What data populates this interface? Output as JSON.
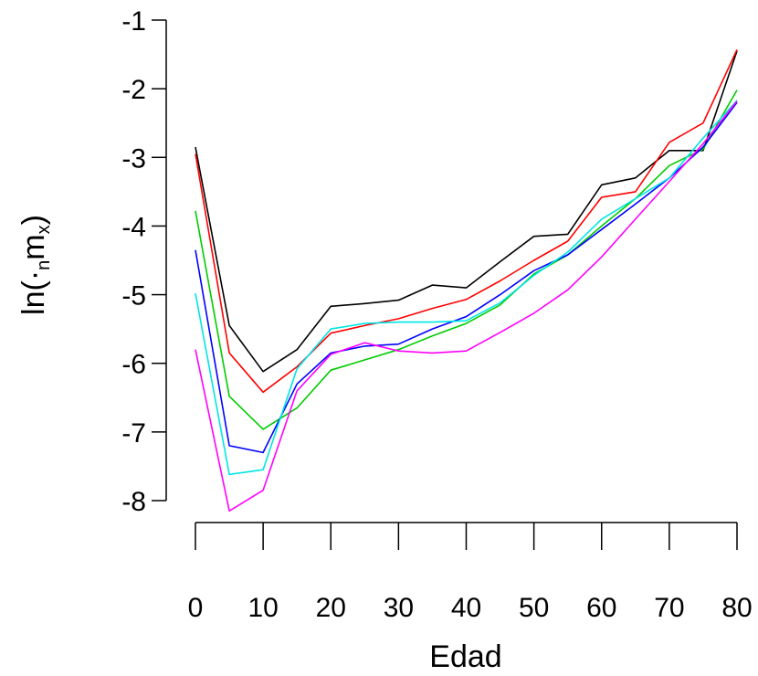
{
  "chart_data": {
    "type": "line",
    "xlabel": "Edad",
    "ylabel": {
      "prefix": "ln(",
      "dot": "·",
      "sub_n": "n",
      "main": "m",
      "sub_x": "x",
      "suffix": ")"
    },
    "x_ticks": [
      0,
      10,
      20,
      30,
      40,
      50,
      60,
      70,
      80
    ],
    "x_tick_labels": [
      "0",
      "10",
      "20",
      "30",
      "40",
      "50",
      "60",
      "70",
      "80"
    ],
    "y_ticks": [
      -1,
      -2,
      -3,
      -4,
      -5,
      -6,
      -7,
      -8
    ],
    "y_tick_labels": [
      "-1",
      "-2",
      "-3",
      "-4",
      "-5",
      "-6",
      "-7",
      "-8"
    ],
    "xlim": [
      0,
      80
    ],
    "ylim": [
      -8,
      -1
    ],
    "grid": false,
    "x": [
      0,
      5,
      10,
      15,
      20,
      25,
      30,
      35,
      40,
      45,
      50,
      55,
      60,
      65,
      70,
      75,
      80
    ],
    "series": [
      {
        "color": "#000000",
        "values": [
          -2.85,
          -5.45,
          -6.12,
          -5.8,
          -5.17,
          -5.13,
          -5.08,
          -4.86,
          -4.9,
          -4.52,
          -4.15,
          -4.12,
          -3.4,
          -3.3,
          -2.9,
          -2.9,
          -1.45
        ]
      },
      {
        "color": "#ff0000",
        "values": [
          -2.95,
          -5.85,
          -6.42,
          -6.05,
          -5.56,
          -5.45,
          -5.35,
          -5.2,
          -5.07,
          -4.8,
          -4.5,
          -4.22,
          -3.58,
          -3.5,
          -2.78,
          -2.5,
          -1.43
        ]
      },
      {
        "color": "#00cc00",
        "values": [
          -3.78,
          -6.48,
          -6.96,
          -6.65,
          -6.1,
          -5.95,
          -5.8,
          -5.6,
          -5.42,
          -5.15,
          -4.7,
          -4.42,
          -4.0,
          -3.6,
          -3.12,
          -2.88,
          -2.02
        ]
      },
      {
        "color": "#0000ff",
        "values": [
          -4.35,
          -7.2,
          -7.3,
          -6.3,
          -5.85,
          -5.75,
          -5.72,
          -5.5,
          -5.32,
          -5.0,
          -4.65,
          -4.42,
          -4.05,
          -3.68,
          -3.3,
          -2.85,
          -2.2
        ]
      },
      {
        "color": "#00e5e5",
        "values": [
          -4.98,
          -7.62,
          -7.55,
          -6.08,
          -5.5,
          -5.42,
          -5.4,
          -5.4,
          -5.38,
          -5.12,
          -4.72,
          -4.38,
          -3.9,
          -3.6,
          -3.3,
          -2.72,
          -2.17
        ]
      },
      {
        "color": "#ff00ff",
        "values": [
          -5.8,
          -8.15,
          -7.85,
          -6.4,
          -5.87,
          -5.7,
          -5.82,
          -5.85,
          -5.82,
          -5.55,
          -5.27,
          -4.93,
          -4.45,
          -3.9,
          -3.35,
          -2.8,
          -2.18
        ]
      }
    ]
  }
}
